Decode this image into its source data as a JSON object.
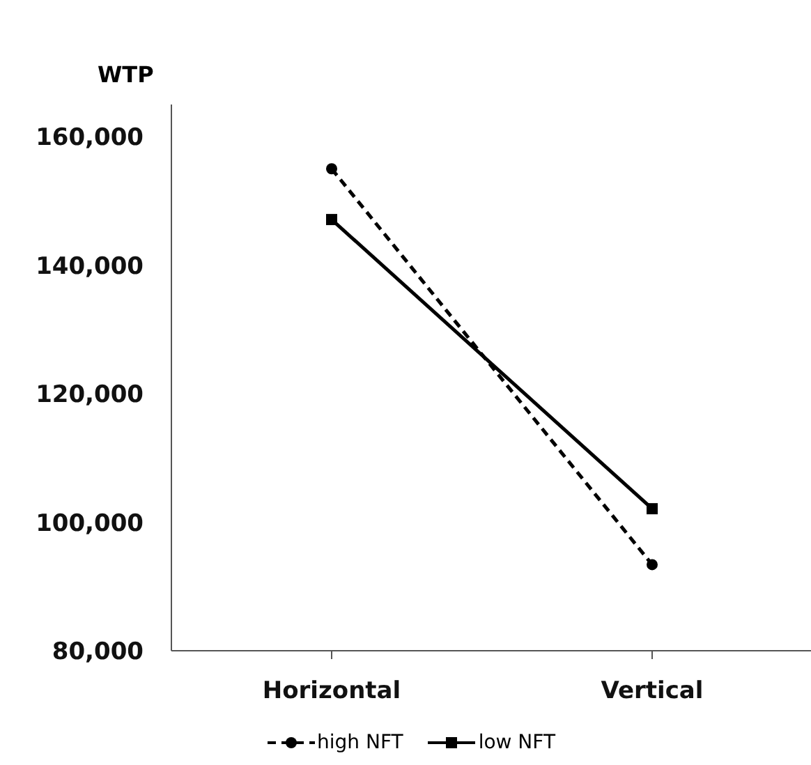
{
  "chart_data": {
    "type": "line",
    "ylabel": "WTP",
    "categories": [
      "Horizontal",
      "Vertical"
    ],
    "series": [
      {
        "name": "high NFT",
        "color": "#000000",
        "values": [
          155000,
          93400
        ],
        "line_style": "dashed",
        "marker": "circle"
      },
      {
        "name": "low NFT",
        "color": "#000000",
        "values": [
          147100,
          102100
        ],
        "line_style": "solid",
        "marker": "square"
      }
    ],
    "ylim": [
      80000,
      165000
    ],
    "yticks": [
      {
        "value": 80000,
        "label": "80,000"
      },
      {
        "value": 100000,
        "label": "100,000"
      },
      {
        "value": 120000,
        "label": "120,000"
      },
      {
        "value": 140000,
        "label": "140,000"
      },
      {
        "value": 160000,
        "label": "160,000"
      }
    ],
    "grid": false,
    "legend": "bottom"
  }
}
